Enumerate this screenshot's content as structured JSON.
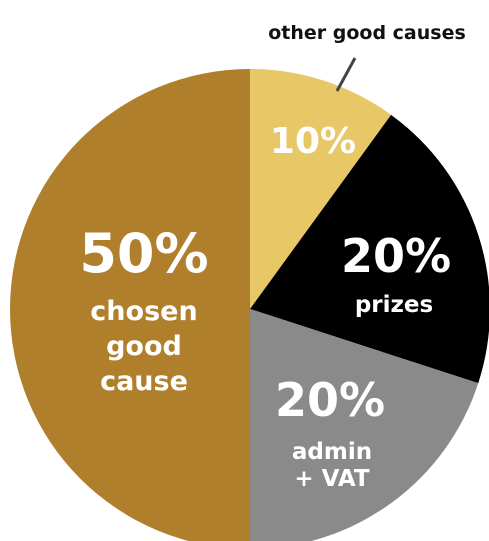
{
  "chart_data": {
    "type": "pie",
    "start": "12 o'clock, clockwise",
    "slices": [
      {
        "label": "other good causes",
        "value": 10,
        "value_text": "10%",
        "color": "#e8c767",
        "text_color": "#ffffff"
      },
      {
        "label": "prizes",
        "value": 20,
        "value_text": "20%",
        "color": "#000000",
        "text_color": "#ffffff"
      },
      {
        "label": "admin + VAT",
        "label_lines": [
          "admin",
          "+ VAT"
        ],
        "value": 20,
        "value_text": "20%",
        "color": "#8a8a8a",
        "text_color": "#ffffff"
      },
      {
        "label": "chosen good cause",
        "label_lines": [
          "chosen",
          "good",
          "cause"
        ],
        "value": 50,
        "value_text": "50%",
        "color": "#b07f2c",
        "text_color": "#ffffff"
      }
    ],
    "annotation": "other good causes"
  }
}
